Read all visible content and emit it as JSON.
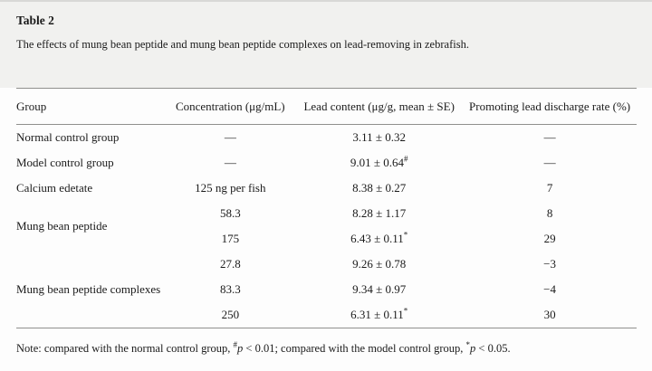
{
  "page": {
    "heading": "Table 2",
    "caption": "The effects of mung bean peptide and mung bean peptide complexes on lead-removing in zebrafish."
  },
  "table": {
    "headers": [
      "Group",
      "Concentration (μg/mL)",
      "Lead content (μg/g, mean ± SE)",
      "Promoting lead discharge rate (%)"
    ],
    "rows": [
      {
        "group": "Normal control group",
        "concentration": "—",
        "lead": "3.11 ± 0.32",
        "lead_sup": "",
        "rate": "—"
      },
      {
        "group": "Model control group",
        "concentration": "—",
        "lead": "9.01 ± 0.64",
        "lead_sup": "#",
        "rate": "—"
      },
      {
        "group": "Calcium edetate",
        "concentration": "125 ng per fish",
        "lead": "8.38 ± 0.27",
        "lead_sup": "",
        "rate": "7"
      },
      {
        "group": "Mung bean peptide",
        "group_rowspan": 2,
        "concentration": "58.3",
        "lead": "8.28 ± 1.17",
        "lead_sup": "",
        "rate": "8"
      },
      {
        "concentration": "175",
        "lead": "6.43 ± 0.11",
        "lead_sup": "*",
        "rate": "29"
      },
      {
        "group": "Mung bean peptide complexes",
        "group_rowspan": 3,
        "concentration": "27.8",
        "lead": "9.26 ± 0.78",
        "lead_sup": "",
        "rate": "−3"
      },
      {
        "concentration": "83.3",
        "lead": "9.34 ± 0.97",
        "lead_sup": "",
        "rate": "−4"
      },
      {
        "concentration": "250",
        "lead": "6.31 ± 0.11",
        "lead_sup": "*",
        "rate": "30"
      }
    ]
  },
  "note": {
    "prefix": "Note: compared with the normal control group, ",
    "sup1": "#",
    "p1": "p",
    "mid": " < 0.01; compared with the model control group, ",
    "sup2": "*",
    "p2": "p",
    "end": " < 0.05."
  }
}
